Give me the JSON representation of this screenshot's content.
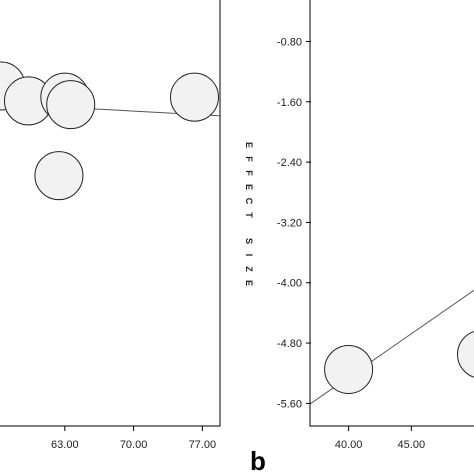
{
  "chart_data": [
    {
      "type": "scatter",
      "panel_label": "",
      "xlabel": "",
      "ylabel": "",
      "x_ticks": [
        "63.00",
        "70.00",
        "77.00"
      ],
      "xlim": [
        56.4,
        78.9
      ],
      "ylim": [
        -5.9,
        -0.2
      ],
      "points": [
        {
          "x": 56.5,
          "y": -1.35,
          "r": 24
        },
        {
          "x": 59.3,
          "y": -1.55,
          "r": 24
        },
        {
          "x": 63.0,
          "y": -1.5,
          "r": 24
        },
        {
          "x": 63.6,
          "y": -1.6,
          "r": 24
        },
        {
          "x": 76.2,
          "y": -1.5,
          "r": 24
        },
        {
          "x": 62.4,
          "y": -2.55,
          "r": 24
        }
      ],
      "fit": {
        "x": [
          58.0,
          78.9
        ],
        "y": [
          -1.6,
          -1.75
        ]
      }
    },
    {
      "type": "scatter",
      "panel_label": "b",
      "xlabel": "",
      "ylabel": "EFFECT SIZE",
      "x_ticks": [
        "40.00",
        "45.00"
      ],
      "y_ticks": [
        "-0.80",
        "-1.60",
        "-2.40",
        "-3.20",
        "-4.00",
        "-4.80",
        "-5.60"
      ],
      "xlim": [
        37.0,
        50.0
      ],
      "ylim": [
        -5.9,
        -0.25
      ],
      "points": [
        {
          "x": 40.0,
          "y": -5.15,
          "r": 24
        },
        {
          "x": 50.6,
          "y": -4.95,
          "r": 24
        }
      ],
      "fit": {
        "x": [
          37.0,
          50.0
        ],
        "y": [
          -5.6,
          -4.1
        ]
      }
    }
  ]
}
